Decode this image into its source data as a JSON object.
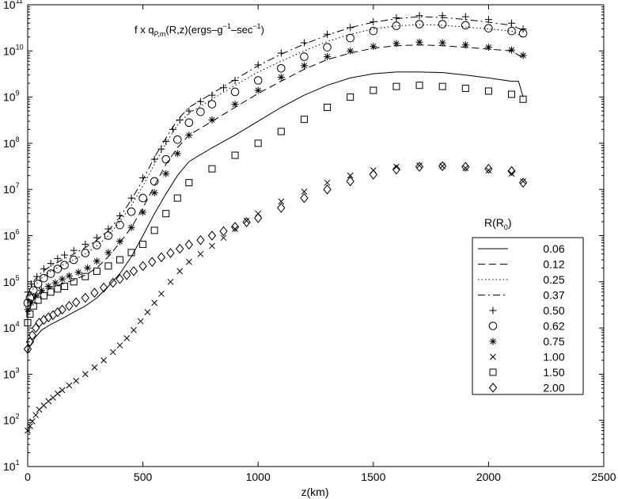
{
  "chart_data": {
    "type": "line",
    "title": "",
    "xlabel": "z(km)",
    "ylabel": "",
    "xlim": [
      0,
      2500
    ],
    "ylim": [
      10,
      100000000000
    ],
    "y_scale": "log",
    "grid": false,
    "legend_position": "right",
    "legend_title": "R(R0)",
    "x_ticks": [
      "0",
      "500",
      "1000",
      "1500",
      "2000",
      "2500"
    ],
    "y_tick_exponents": [
      "1",
      "2",
      "3",
      "4",
      "5",
      "6",
      "7",
      "8",
      "9",
      "10",
      "11"
    ],
    "annotation": {
      "main": "f x q",
      "sub": "P,m",
      "middle": "(R,z)(ergs–g",
      "sup1": "−1",
      "middle2": "–sec",
      "sup2": "−1",
      "end": ")"
    },
    "series": [
      {
        "name": "0.06",
        "style": "solid",
        "x": [
          0,
          10,
          30,
          60,
          100,
          150,
          200,
          250,
          300,
          350,
          400,
          450,
          500,
          550,
          600,
          650,
          700,
          800,
          900,
          1000,
          1100,
          1200,
          1300,
          1400,
          1500,
          1600,
          1700,
          1800,
          1900,
          2000,
          2100,
          2130,
          2150
        ],
        "y": [
          3000,
          4000,
          6000,
          9000,
          12000,
          16000,
          22000,
          30000,
          45000,
          80000,
          150000,
          350000,
          1000000,
          3000000,
          8000000,
          20000000,
          40000000,
          80000000,
          150000000,
          300000000,
          600000000,
          1100000000,
          1800000000,
          2600000000,
          3200000000,
          3500000000,
          3500000000,
          3400000000,
          3000000000,
          2600000000,
          2200000000,
          2200000000,
          1000000000
        ]
      },
      {
        "name": "0.12",
        "style": "dashed",
        "x": [
          0,
          10,
          30,
          60,
          100,
          150,
          200,
          250,
          300,
          350,
          400,
          450,
          500,
          550,
          600,
          650,
          700,
          800,
          900,
          1000,
          1100,
          1200,
          1300,
          1400,
          1500,
          1600,
          1700,
          1800,
          1900,
          2000,
          2100,
          2150
        ],
        "y": [
          20000,
          30000,
          45000,
          60000,
          75000,
          90000,
          110000,
          140000,
          200000,
          350000,
          700000,
          1500000,
          4000000,
          12000000,
          35000000,
          80000000,
          150000000,
          300000000,
          600000000,
          1200000000,
          2200000000,
          4000000000,
          6500000000,
          9000000000,
          11500000000,
          13000000000,
          13500000000,
          13000000000,
          12000000000,
          11000000000,
          10000000000,
          7000000000
        ]
      },
      {
        "name": "0.25",
        "style": "dotted",
        "x": [
          0,
          10,
          30,
          60,
          100,
          150,
          200,
          250,
          300,
          350,
          400,
          450,
          500,
          550,
          600,
          650,
          700,
          800,
          900,
          1000,
          1100,
          1200,
          1300,
          1400,
          1500,
          1600,
          1700,
          1800,
          1900,
          2000,
          2100,
          2150
        ],
        "y": [
          35000,
          50000,
          80000,
          120000,
          170000,
          230000,
          300000,
          400000,
          600000,
          1000000,
          2000000,
          4500000,
          12000000,
          35000000,
          100000000,
          250000000,
          450000000,
          900000000,
          1800000000,
          3500000000,
          6000000000,
          10000000000,
          16000000000,
          23000000000,
          30000000000,
          35000000000,
          37000000000,
          36000000000,
          33000000000,
          30000000000,
          27000000000,
          20000000000
        ]
      },
      {
        "name": "0.37",
        "style": "dashdot",
        "x": [
          0,
          10,
          30,
          60,
          100,
          150,
          200,
          250,
          300,
          350,
          400,
          450,
          500,
          550,
          600,
          650,
          700,
          800,
          900,
          1000,
          1100,
          1200,
          1300,
          1400,
          1500,
          1600,
          1700,
          1800,
          1900,
          2000,
          2100,
          2150
        ],
        "y": [
          50000,
          70000,
          110000,
          160000,
          220000,
          300000,
          400000,
          550000,
          800000,
          1300000,
          2500000,
          6000000,
          16000000,
          50000000,
          130000000,
          320000000,
          600000000,
          1200000000,
          2400000000,
          4800000000,
          8500000000,
          14000000000,
          22000000000,
          32000000000,
          42000000000,
          50000000000,
          55000000000,
          53000000000,
          48000000000,
          42000000000,
          36000000000,
          28000000000
        ]
      },
      {
        "name": "0.50",
        "style": "plus",
        "x": [
          0,
          15,
          40,
          70,
          100,
          130,
          160,
          200,
          250,
          300,
          350,
          400,
          450,
          500,
          550,
          580,
          600,
          630,
          660,
          700,
          750,
          800,
          850,
          900,
          1000,
          1100,
          1200,
          1300,
          1400,
          1500,
          1600,
          1700,
          1800,
          1900,
          2000,
          2100,
          2150
        ],
        "y": [
          60000,
          90000,
          130000,
          190000,
          250000,
          320000,
          380000,
          480000,
          650000,
          900000,
          1400000,
          2700000,
          6500000,
          18000000,
          45000000,
          75000000,
          110000000,
          200000000,
          320000000,
          500000000,
          800000000,
          1100000000,
          1600000000,
          2300000000,
          5000000000,
          9000000000,
          15000000000,
          23000000000,
          32000000000,
          43000000000,
          52000000000,
          58000000000,
          58000000000,
          55000000000,
          48000000000,
          40000000000,
          30000000000
        ]
      },
      {
        "name": "0.62",
        "style": "circle",
        "x": [
          0,
          10,
          25,
          45,
          70,
          100,
          130,
          160,
          200,
          250,
          300,
          350,
          400,
          450,
          500,
          550,
          600,
          650,
          700,
          750,
          800,
          900,
          1000,
          1100,
          1200,
          1300,
          1400,
          1500,
          1600,
          1700,
          1800,
          1900,
          2000,
          2100,
          2150
        ],
        "y": [
          35000,
          45000,
          65000,
          90000,
          120000,
          150000,
          190000,
          230000,
          300000,
          420000,
          620000,
          1000000,
          1700000,
          3300000,
          6500000,
          15000000,
          45000000,
          120000000,
          280000000,
          480000000,
          700000000,
          1300000000,
          2300000000,
          4200000000,
          7500000000,
          12000000000,
          19000000000,
          27000000000,
          35000000000,
          38000000000,
          38000000000,
          36000000000,
          31000000000,
          27000000000,
          24000000000
        ]
      },
      {
        "name": "0.75",
        "style": "asterisk",
        "x": [
          0,
          15,
          35,
          60,
          90,
          120,
          150,
          180,
          220,
          260,
          300,
          350,
          400,
          450,
          500,
          550,
          600,
          650,
          700,
          800,
          900,
          1000,
          1100,
          1200,
          1300,
          1400,
          1500,
          1600,
          1700,
          1800,
          1900,
          2000,
          2100,
          2150
        ],
        "y": [
          25000,
          35000,
          50000,
          65000,
          80000,
          95000,
          115000,
          135000,
          160000,
          200000,
          280000,
          430000,
          750000,
          1500000,
          3200000,
          8500000,
          22000000,
          60000000,
          150000000,
          320000000,
          700000000,
          1400000000,
          2700000000,
          4800000000,
          7500000000,
          10000000000,
          12500000000,
          14500000000,
          15500000000,
          15000000000,
          13500000000,
          12000000000,
          10500000000,
          8000000000
        ]
      },
      {
        "name": "1.00",
        "style": "cross",
        "x": [
          0,
          10,
          20,
          35,
          50,
          70,
          90,
          110,
          130,
          150,
          180,
          210,
          250,
          290,
          330,
          370,
          400,
          430,
          460,
          490,
          520,
          550,
          580,
          620,
          660,
          700,
          750,
          800,
          850,
          900,
          950,
          1000,
          1100,
          1200,
          1300,
          1400,
          1500,
          1600,
          1700,
          1800,
          1900,
          2000,
          2100,
          2150
        ],
        "y": [
          60,
          75,
          95,
          130,
          170,
          210,
          260,
          310,
          380,
          450,
          570,
          720,
          1000,
          1400,
          2000,
          3000,
          4200,
          6000,
          9000,
          14000,
          22000,
          35000,
          55000,
          100000,
          170000,
          270000,
          400000,
          600000,
          900000,
          1400000,
          2100000,
          3000000,
          5500000,
          9000000,
          14000000,
          20000000,
          26000000,
          31000000,
          33000000,
          32000000,
          29000000,
          26000000,
          22000000,
          15000000
        ]
      },
      {
        "name": "1.50",
        "style": "square",
        "x": [
          0,
          10,
          25,
          45,
          70,
          100,
          130,
          160,
          200,
          250,
          300,
          350,
          400,
          450,
          500,
          550,
          600,
          650,
          700,
          800,
          900,
          1000,
          1100,
          1200,
          1300,
          1400,
          1500,
          1600,
          1700,
          1800,
          1900,
          2000,
          2100,
          2150
        ],
        "y": [
          13000,
          20000,
          30000,
          40000,
          50000,
          60000,
          70000,
          80000,
          100000,
          130000,
          170000,
          220000,
          300000,
          430000,
          650000,
          1300000,
          3000000,
          6500000,
          14000000,
          28000000,
          55000000,
          100000000,
          180000000,
          330000000,
          600000000,
          1000000000,
          1400000000,
          1700000000,
          1800000000,
          1700000000,
          1550000000,
          1350000000,
          1150000000,
          900000000
        ]
      },
      {
        "name": "2.00",
        "style": "diamond",
        "x": [
          0,
          10,
          20,
          35,
          50,
          70,
          90,
          110,
          130,
          150,
          180,
          210,
          250,
          290,
          330,
          370,
          400,
          430,
          460,
          500,
          540,
          580,
          620,
          660,
          700,
          750,
          800,
          850,
          900,
          950,
          1000,
          1100,
          1200,
          1300,
          1400,
          1500,
          1600,
          1700,
          1800,
          1900,
          2000,
          2100,
          2150
        ],
        "y": [
          3500,
          5000,
          7000,
          10000,
          13000,
          15000,
          17000,
          19000,
          22000,
          25000,
          30000,
          36000,
          45000,
          58000,
          75000,
          95000,
          115000,
          140000,
          170000,
          220000,
          270000,
          340000,
          420000,
          520000,
          640000,
          800000,
          1000000,
          1250000,
          1550000,
          1950000,
          2400000,
          4000000,
          6500000,
          10000000,
          15000000,
          21000000,
          27000000,
          31000000,
          32000000,
          31000000,
          28000000,
          25000000,
          14000000
        ]
      }
    ]
  }
}
